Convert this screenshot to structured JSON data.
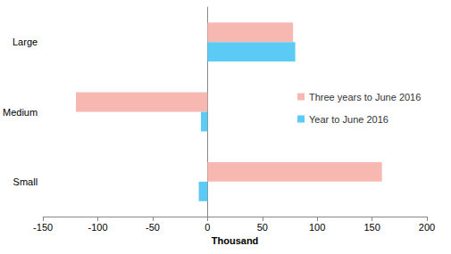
{
  "chart_data": {
    "type": "bar",
    "orientation": "horizontal",
    "categories": [
      "Large",
      "Medium",
      "Small"
    ],
    "series": [
      {
        "name": "Three years to June 2016",
        "color": "#f8b8b2",
        "values": [
          78,
          -120,
          159
        ]
      },
      {
        "name": "Year to June 2016",
        "color": "#5bcbf5",
        "values": [
          80,
          -6,
          -8
        ]
      }
    ],
    "xlabel": "Thousand",
    "xlim": [
      -150,
      200
    ],
    "xticks": [
      -150,
      -100,
      -50,
      0,
      50,
      100,
      150,
      200
    ],
    "grid": false,
    "legend": "right"
  }
}
